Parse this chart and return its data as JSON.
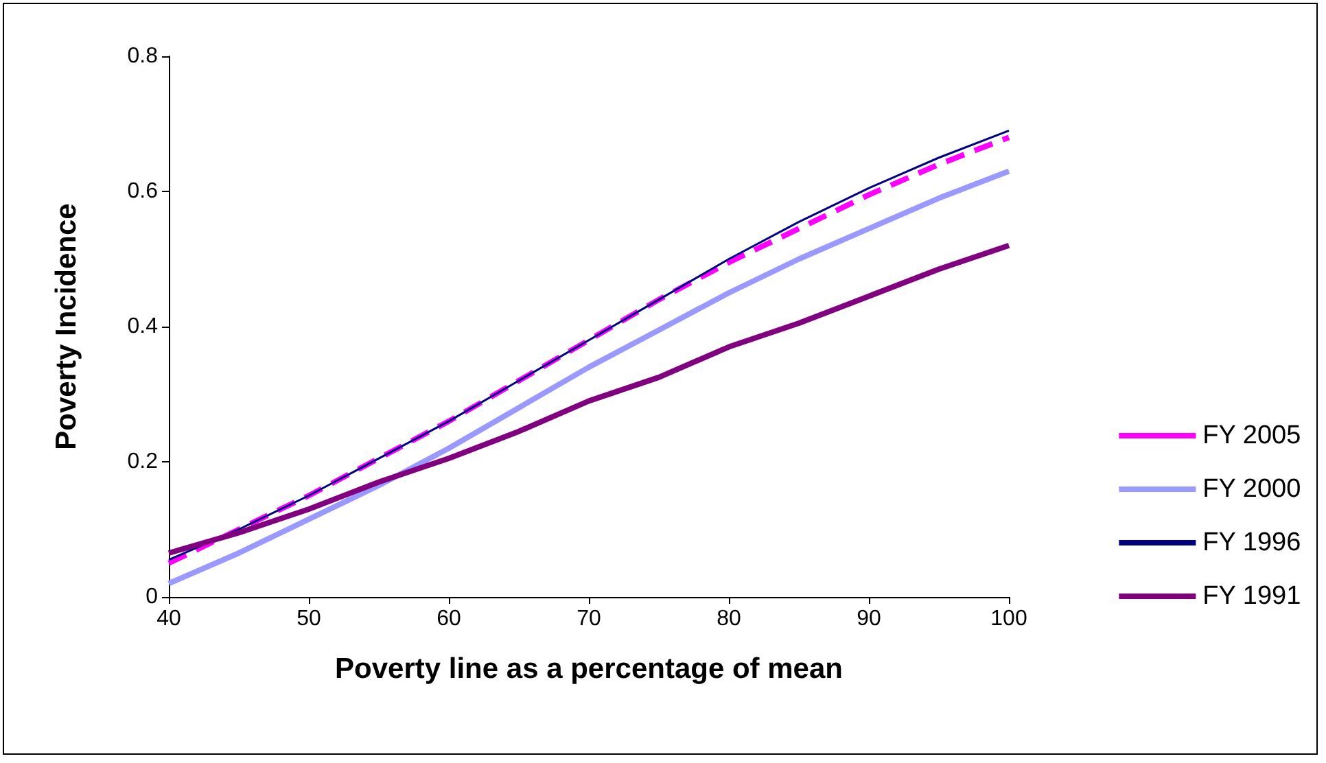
{
  "chart_data": {
    "type": "line",
    "xlabel": "Poverty line as a percentage of mean",
    "ylabel": "Poverty Incidence",
    "x": [
      40,
      45,
      50,
      55,
      60,
      65,
      70,
      75,
      80,
      85,
      90,
      95,
      100
    ],
    "series": [
      {
        "name": "FY 2005",
        "color": "#ff00ff",
        "line_style": "dashed",
        "values": [
          0.05,
          0.1,
          0.15,
          0.205,
          0.26,
          0.32,
          0.38,
          0.44,
          0.495,
          0.545,
          0.595,
          0.64,
          0.68
        ]
      },
      {
        "name": "FY 2000",
        "color": "#9999ff",
        "values": [
          0.02,
          0.065,
          0.115,
          0.165,
          0.22,
          0.28,
          0.34,
          0.395,
          0.45,
          0.5,
          0.545,
          0.59,
          0.63
        ]
      },
      {
        "name": "FY 1996",
        "color": "#000080",
        "values": [
          0.055,
          0.1,
          0.15,
          0.205,
          0.26,
          0.32,
          0.38,
          0.44,
          0.5,
          0.555,
          0.605,
          0.65,
          0.69
        ]
      },
      {
        "name": "FY 1991",
        "color": "#800080",
        "values": [
          0.065,
          0.095,
          0.13,
          0.17,
          0.205,
          0.245,
          0.29,
          0.325,
          0.37,
          0.405,
          0.445,
          0.485,
          0.52
        ]
      }
    ],
    "xlim": [
      40,
      100
    ],
    "xticks": [
      40,
      50,
      60,
      70,
      80,
      90,
      100
    ],
    "ylim": [
      0,
      0.8
    ],
    "yticks": [
      0,
      0.2,
      0.4,
      0.6,
      0.8
    ],
    "grid": false,
    "legend": "right",
    "marker": "none",
    "line_style": "solid"
  }
}
